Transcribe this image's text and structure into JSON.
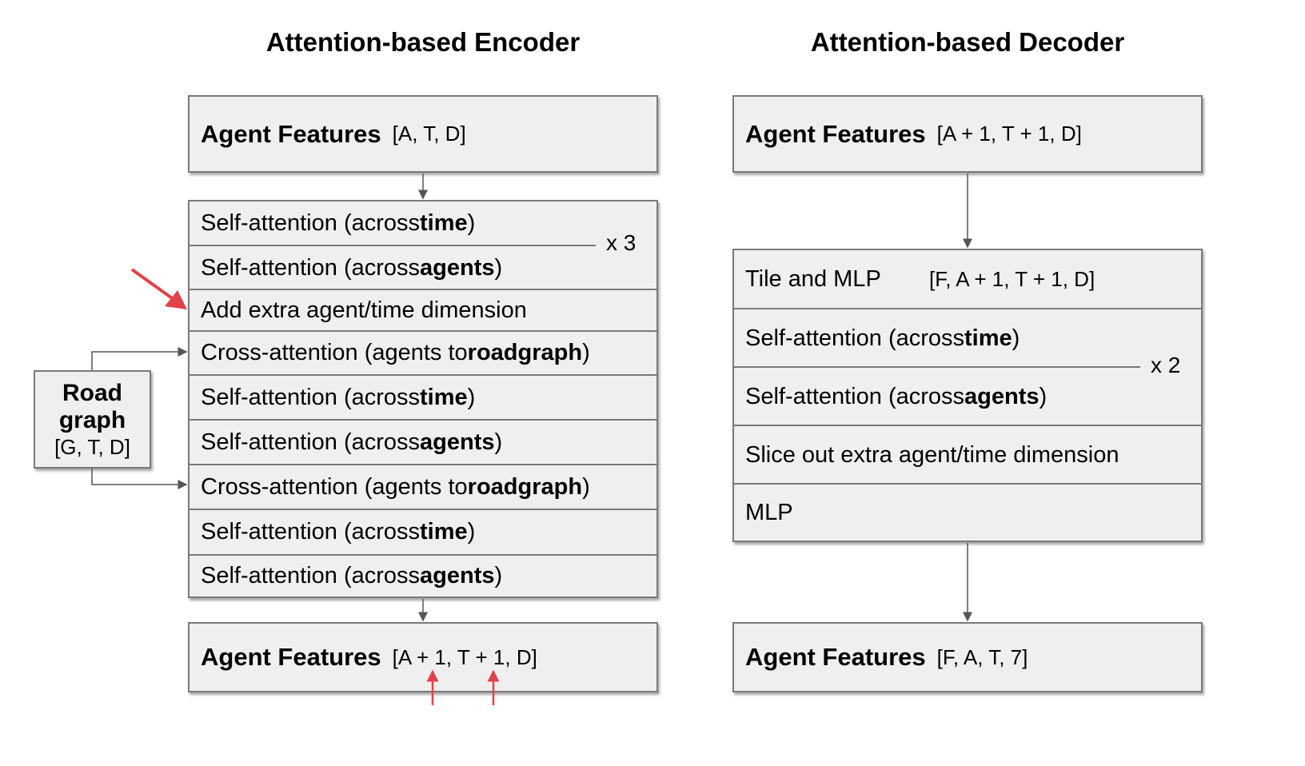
{
  "encoder": {
    "title": "Attention-based Encoder",
    "input": {
      "label": "Agent Features",
      "dims": "[A, T, D]"
    },
    "repeat_label": "x 3",
    "layers": [
      {
        "prefix": "Self-attention (across ",
        "bold": "time",
        "suffix": ")"
      },
      {
        "prefix": "Self-attention (across ",
        "bold": "agents",
        "suffix": ")"
      },
      {
        "prefix": "Add extra agent/time dimension",
        "bold": "",
        "suffix": ""
      },
      {
        "prefix": "Cross-attention (agents to ",
        "bold": "roadgraph",
        "suffix": ")"
      },
      {
        "prefix": "Self-attention (across ",
        "bold": "time",
        "suffix": ")"
      },
      {
        "prefix": "Self-attention (across ",
        "bold": "agents",
        "suffix": ")"
      },
      {
        "prefix": "Cross-attention (agents to ",
        "bold": "roadgraph",
        "suffix": ")"
      },
      {
        "prefix": "Self-attention (across ",
        "bold": "time",
        "suffix": ")"
      },
      {
        "prefix": "Self-attention (across ",
        "bold": "agents",
        "suffix": ")"
      }
    ],
    "output": {
      "label": "Agent Features",
      "dims": "[A + 1, T + 1, D]"
    }
  },
  "roadgraph": {
    "line1": "Road",
    "line2": "graph",
    "dims": "[G, T, D]"
  },
  "decoder": {
    "title": "Attention-based Decoder",
    "input": {
      "label": "Agent Features",
      "dims": "[A + 1, T + 1, D]"
    },
    "tile": {
      "label": "Tile and MLP",
      "dims": "[F, A + 1, T + 1, D]"
    },
    "repeat_label": "x 2",
    "layers": [
      {
        "prefix": "Self-attention (across ",
        "bold": "time",
        "suffix": ")"
      },
      {
        "prefix": "Self-attention (across ",
        "bold": "agents",
        "suffix": ")"
      }
    ],
    "slice": "Slice out extra agent/time dimension",
    "mlp": "MLP",
    "output": {
      "label": "Agent Features",
      "dims": "[F, A, T, 7]"
    }
  },
  "colors": {
    "highlight": "#e0424a",
    "box_fill": "#efefef",
    "border": "#7a7a7a"
  }
}
